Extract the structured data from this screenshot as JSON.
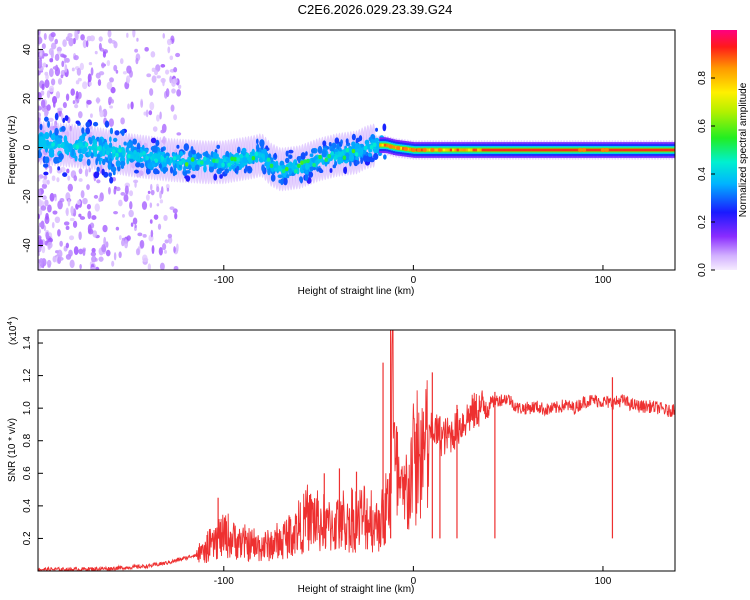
{
  "title": "C2E6.2026.029.23.39.G24",
  "chart_data": [
    {
      "type": "heatmap",
      "name": "dynamic-spectrum",
      "xlabel": "Height of straight line (km)",
      "ylabel": "Frequency (Hz)",
      "xlim": [
        -198,
        138
      ],
      "ylim": [
        -50,
        48
      ],
      "xticks": [
        -100,
        0,
        100
      ],
      "yticks": [
        -40,
        -20,
        0,
        20,
        40
      ],
      "ridge": {
        "description": "frequency of the strongest spectral line vs height",
        "x": [
          -198,
          -170,
          -150,
          -130,
          -110,
          -100,
          -85,
          -80,
          -75,
          -70,
          -60,
          -50,
          -40,
          -30,
          -25,
          -20,
          -15,
          -10,
          0,
          20,
          40,
          60,
          80,
          100,
          120,
          138
        ],
        "y": [
          2,
          0,
          -3,
          -5,
          -6,
          -6,
          -4,
          -3,
          -7,
          -9,
          -8,
          -5,
          -3,
          -2,
          0,
          1,
          1,
          0,
          -1,
          -1,
          -1,
          -1,
          -1,
          -1,
          -1,
          -1
        ]
      },
      "colorbar": {
        "label": "Normalized spectral amplitude",
        "range": [
          0,
          1
        ],
        "ticks": [
          "0.0",
          "0.2",
          "0.4",
          "0.6",
          "0.8"
        ]
      }
    },
    {
      "type": "line",
      "name": "snr",
      "xlabel": "Height of straight line (km)",
      "ylabel": "SNR (10 * v/v)",
      "exponent_label": "(x10",
      "exponent": "4",
      "exponent_close": ")",
      "xlim": [
        -198,
        138
      ],
      "ylim": [
        0,
        1.48
      ],
      "xticks": [
        -100,
        0,
        100
      ],
      "yticks": [
        "0.2",
        "0.4",
        "0.6",
        "0.8",
        "1.0",
        "1.2",
        "1.4"
      ],
      "color": "#ee3030",
      "series": [
        {
          "name": "SNR",
          "x": [
            -198,
            -180,
            -160,
            -140,
            -130,
            -120,
            -110,
            -105,
            -100,
            -95,
            -90,
            -80,
            -70,
            -60,
            -55,
            -50,
            -45,
            -40,
            -35,
            -30,
            -25,
            -20,
            -15,
            -13,
            -12,
            -11,
            -10,
            -8,
            -5,
            0,
            5,
            8,
            10,
            15,
            20,
            25,
            30,
            35,
            40,
            45,
            50,
            55,
            60,
            65,
            70,
            75,
            80,
            85,
            90,
            95,
            100,
            105,
            110,
            115,
            120,
            125,
            130,
            135,
            138
          ],
          "y": [
            0.01,
            0.01,
            0.015,
            0.03,
            0.05,
            0.08,
            0.12,
            0.18,
            0.22,
            0.2,
            0.17,
            0.15,
            0.18,
            0.28,
            0.33,
            0.3,
            0.28,
            0.3,
            0.3,
            0.32,
            0.33,
            0.3,
            0.35,
            0.45,
            0.55,
            1.48,
            0.6,
            0.55,
            0.42,
            0.68,
            0.72,
            0.78,
            0.88,
            0.82,
            0.84,
            0.9,
            0.96,
            1.0,
            1.03,
            1.05,
            1.06,
            1.0,
            1.0,
            1.01,
            0.99,
            1.0,
            1.02,
            1.0,
            1.04,
            1.05,
            1.04,
            1.03,
            1.05,
            1.02,
            1.01,
            1.01,
            1.0,
            0.98,
            1.0
          ],
          "spikes": [
            {
              "x": -103,
              "y": 0.45
            },
            {
              "x": -47,
              "y": 0.6
            },
            {
              "x": -39,
              "y": 0.63
            },
            {
              "x": -30,
              "y": 0.61
            },
            {
              "x": -16,
              "y": 1.28
            },
            {
              "x": -12,
              "y": 1.48
            },
            {
              "x": 10,
              "y": 1.22
            },
            {
              "x": 14,
              "y": 0.95
            },
            {
              "x": 23,
              "y": 1.02
            },
            {
              "x": 43,
              "y": 1.1
            },
            {
              "x": 105,
              "y": 1.19
            }
          ]
        }
      ]
    }
  ]
}
